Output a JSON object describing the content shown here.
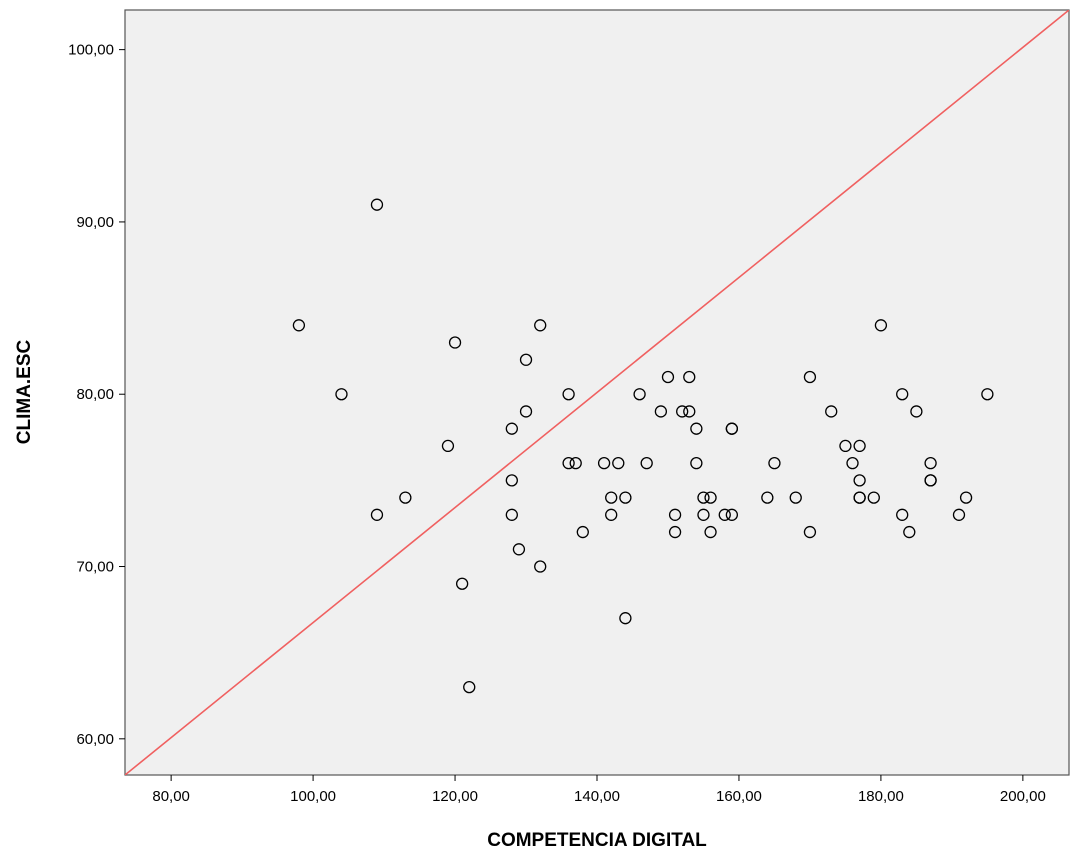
{
  "chart_data": {
    "type": "scatter",
    "xlabel": "COMPETENCIA DIGITAL",
    "ylabel": "CLIMA.ESC",
    "xlim": [
      73.5,
      206.5
    ],
    "ylim": [
      57.9,
      102.3
    ],
    "x_ticks": [
      80,
      100,
      120,
      140,
      160,
      180,
      200
    ],
    "x_tick_labels": [
      "80,00",
      "100,00",
      "120,00",
      "140,00",
      "160,00",
      "180,00",
      "200,00"
    ],
    "y_ticks": [
      60,
      70,
      80,
      90,
      100
    ],
    "y_tick_labels": [
      "60,00",
      "70,00",
      "80,00",
      "90,00",
      "100,00"
    ],
    "grid": false,
    "plot_background": "#f0f0f0",
    "marker_color": "#000000",
    "reference_line": {
      "color": "#f06060",
      "points": [
        [
          73.5,
          57.9
        ],
        [
          206.5,
          102.3
        ]
      ]
    },
    "points": [
      [
        98,
        84
      ],
      [
        104,
        80
      ],
      [
        109,
        91
      ],
      [
        109,
        73
      ],
      [
        113,
        74
      ],
      [
        119,
        77
      ],
      [
        120,
        83
      ],
      [
        121,
        69
      ],
      [
        122,
        63
      ],
      [
        128,
        78
      ],
      [
        128,
        75
      ],
      [
        128,
        73
      ],
      [
        129,
        71
      ],
      [
        130,
        82
      ],
      [
        130,
        79
      ],
      [
        132,
        84
      ],
      [
        132,
        70
      ],
      [
        136,
        80
      ],
      [
        136,
        76
      ],
      [
        137,
        76
      ],
      [
        138,
        72
      ],
      [
        141,
        76
      ],
      [
        142,
        74
      ],
      [
        142,
        73
      ],
      [
        143,
        76
      ],
      [
        144,
        74
      ],
      [
        144,
        67
      ],
      [
        146,
        80
      ],
      [
        147,
        76
      ],
      [
        149,
        79
      ],
      [
        150,
        81
      ],
      [
        151,
        73
      ],
      [
        151,
        72
      ],
      [
        152,
        79
      ],
      [
        153,
        81
      ],
      [
        153,
        79
      ],
      [
        154,
        78
      ],
      [
        154,
        76
      ],
      [
        155,
        74
      ],
      [
        155,
        73
      ],
      [
        156,
        74
      ],
      [
        156,
        72
      ],
      [
        158,
        73
      ],
      [
        159,
        78
      ],
      [
        159,
        78
      ],
      [
        159,
        73
      ],
      [
        164,
        74
      ],
      [
        165,
        76
      ],
      [
        168,
        74
      ],
      [
        170,
        81
      ],
      [
        170,
        72
      ],
      [
        173,
        79
      ],
      [
        175,
        77
      ],
      [
        176,
        76
      ],
      [
        177,
        77
      ],
      [
        177,
        75
      ],
      [
        177,
        74
      ],
      [
        177,
        74
      ],
      [
        179,
        74
      ],
      [
        180,
        84
      ],
      [
        183,
        80
      ],
      [
        183,
        73
      ],
      [
        184,
        72
      ],
      [
        185,
        79
      ],
      [
        187,
        76
      ],
      [
        187,
        75
      ],
      [
        187,
        75
      ],
      [
        191,
        73
      ],
      [
        192,
        74
      ],
      [
        195,
        80
      ]
    ]
  }
}
